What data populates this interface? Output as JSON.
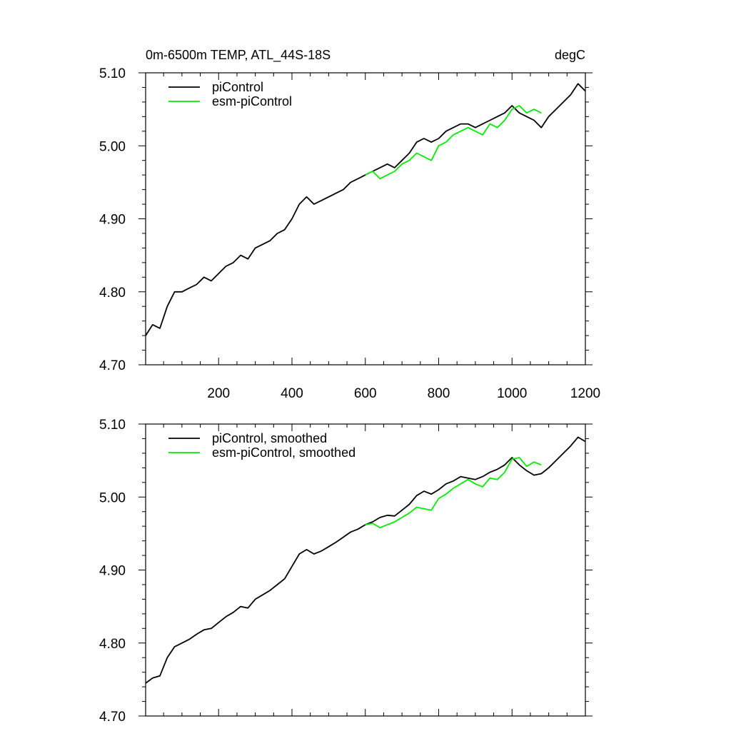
{
  "figure": {
    "title_left": "0m-6500m TEMP, ATL_44S-18S",
    "title_right": "degC"
  },
  "colors": {
    "piControl": "#000000",
    "esm_piControl": "#00ee00",
    "axis": "#000000"
  },
  "chart_data": [
    {
      "type": "line",
      "panel": "top",
      "title": "0m-6500m TEMP, ATL_44S-18S",
      "units": "degC",
      "xlabel": "",
      "ylabel": "",
      "xlim": [
        1,
        1200
      ],
      "ylim": [
        4.7,
        5.1
      ],
      "x_ticks": [
        200,
        400,
        600,
        800,
        1000,
        1200
      ],
      "x_tick_labels": [
        "200",
        "400",
        "600",
        "800",
        "1000",
        "1200"
      ],
      "y_ticks": [
        4.7,
        4.8,
        4.9,
        5.0,
        5.1
      ],
      "y_tick_labels": [
        "4.70",
        "4.80",
        "4.90",
        "5.00",
        "5.10"
      ],
      "legend": [
        "piControl",
        "esm-piControl"
      ],
      "legend_position": "top-left",
      "series": [
        {
          "name": "piControl",
          "color": "#000000",
          "x": [
            1,
            20,
            40,
            60,
            80,
            100,
            120,
            140,
            160,
            180,
            200,
            220,
            240,
            260,
            280,
            300,
            320,
            340,
            360,
            380,
            400,
            420,
            440,
            460,
            480,
            500,
            520,
            540,
            560,
            580,
            600,
            620,
            640,
            660,
            680,
            700,
            720,
            740,
            760,
            780,
            800,
            820,
            840,
            860,
            880,
            900,
            920,
            940,
            960,
            980,
            1000,
            1020,
            1040,
            1060,
            1080,
            1100,
            1120,
            1140,
            1160,
            1180,
            1200
          ],
          "values": [
            4.74,
            4.755,
            4.75,
            4.78,
            4.8,
            4.8,
            4.805,
            4.81,
            4.82,
            4.815,
            4.825,
            4.835,
            4.84,
            4.85,
            4.845,
            4.86,
            4.865,
            4.87,
            4.88,
            4.885,
            4.9,
            4.92,
            4.93,
            4.92,
            4.925,
            4.93,
            4.935,
            4.94,
            4.95,
            4.955,
            4.96,
            4.965,
            4.97,
            4.975,
            4.97,
            4.98,
            4.99,
            5.005,
            5.01,
            5.005,
            5.01,
            5.02,
            5.025,
            5.03,
            5.03,
            5.025,
            5.03,
            5.035,
            5.04,
            5.045,
            5.055,
            5.045,
            5.04,
            5.035,
            5.025,
            5.04,
            5.05,
            5.06,
            5.07,
            5.085,
            5.075
          ]
        },
        {
          "name": "esm-piControl",
          "color": "#00ee00",
          "x": [
            600,
            620,
            640,
            660,
            680,
            700,
            720,
            740,
            760,
            780,
            800,
            820,
            840,
            860,
            880,
            900,
            920,
            940,
            960,
            980,
            1000,
            1020,
            1040,
            1060,
            1080
          ],
          "values": [
            4.96,
            4.965,
            4.955,
            4.96,
            4.965,
            4.975,
            4.98,
            4.99,
            4.985,
            4.98,
            5.0,
            5.005,
            5.015,
            5.02,
            5.025,
            5.02,
            5.015,
            5.03,
            5.025,
            5.035,
            5.05,
            5.055,
            5.045,
            5.05,
            5.045
          ]
        }
      ]
    },
    {
      "type": "line",
      "panel": "bottom",
      "title": "",
      "xlabel": "",
      "ylabel": "",
      "xlim": [
        1,
        1200
      ],
      "ylim": [
        4.7,
        5.1
      ],
      "x_ticks": [
        200,
        400,
        600,
        800,
        1000,
        1200
      ],
      "y_ticks": [
        4.7,
        4.8,
        4.9,
        5.0,
        5.1
      ],
      "y_tick_labels": [
        "4.70",
        "4.80",
        "4.90",
        "5.00",
        "5.10"
      ],
      "legend": [
        "piControl, smoothed",
        "esm-piControl, smoothed"
      ],
      "legend_position": "top-left",
      "series": [
        {
          "name": "piControl, smoothed",
          "color": "#000000",
          "x": [
            1,
            20,
            40,
            60,
            80,
            100,
            120,
            140,
            160,
            180,
            200,
            220,
            240,
            260,
            280,
            300,
            320,
            340,
            360,
            380,
            400,
            420,
            440,
            460,
            480,
            500,
            520,
            540,
            560,
            580,
            600,
            620,
            640,
            660,
            680,
            700,
            720,
            740,
            760,
            780,
            800,
            820,
            840,
            860,
            880,
            900,
            920,
            940,
            960,
            980,
            1000,
            1020,
            1040,
            1060,
            1080,
            1100,
            1120,
            1140,
            1160,
            1180,
            1200
          ],
          "values": [
            4.745,
            4.752,
            4.755,
            4.78,
            4.795,
            4.8,
            4.805,
            4.812,
            4.818,
            4.82,
            4.828,
            4.836,
            4.842,
            4.85,
            4.848,
            4.86,
            4.866,
            4.872,
            4.88,
            4.888,
            4.905,
            4.922,
            4.928,
            4.922,
            4.926,
            4.932,
            4.938,
            4.945,
            4.952,
            4.956,
            4.962,
            4.966,
            4.972,
            4.975,
            4.974,
            4.982,
            4.99,
            5.002,
            5.008,
            5.004,
            5.01,
            5.018,
            5.022,
            5.028,
            5.026,
            5.024,
            5.028,
            5.034,
            5.038,
            5.044,
            5.054,
            5.044,
            5.036,
            5.03,
            5.032,
            5.04,
            5.05,
            5.06,
            5.07,
            5.082,
            5.076
          ]
        },
        {
          "name": "esm-piControl, smoothed",
          "color": "#00ee00",
          "x": [
            600,
            620,
            640,
            660,
            680,
            700,
            720,
            740,
            760,
            780,
            800,
            820,
            840,
            860,
            880,
            900,
            920,
            940,
            960,
            980,
            1000,
            1020,
            1040,
            1060,
            1080
          ],
          "values": [
            4.962,
            4.964,
            4.958,
            4.962,
            4.966,
            4.972,
            4.978,
            4.986,
            4.984,
            4.982,
            4.998,
            5.004,
            5.012,
            5.018,
            5.024,
            5.018,
            5.014,
            5.026,
            5.024,
            5.034,
            5.052,
            5.054,
            5.042,
            5.048,
            5.044
          ]
        }
      ]
    }
  ]
}
